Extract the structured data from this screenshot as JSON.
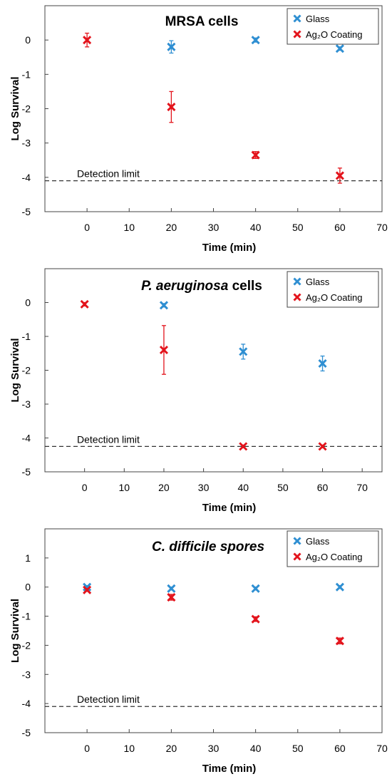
{
  "chart_data": [
    {
      "type": "scatter",
      "title": "MRSA cells",
      "title_italic": false,
      "xlabel": "Time (min)",
      "ylabel": "Log Survival",
      "xlim": [
        -10,
        70
      ],
      "ylim": [
        -5,
        1
      ],
      "xticks": [
        0,
        10,
        20,
        30,
        40,
        50,
        60,
        70
      ],
      "yticks": [
        -5,
        -4,
        -3,
        -2,
        -1,
        0
      ],
      "legend_position": "top-right",
      "detection_limit": {
        "label": "Detection limit",
        "y": -4.1
      },
      "series": [
        {
          "name": "Glass",
          "color": "#2f8fd2",
          "points": [
            {
              "x": 20,
              "y": -0.2,
              "err": 0.18
            },
            {
              "x": 40,
              "y": 0.0,
              "err": 0.06
            },
            {
              "x": 60,
              "y": -0.25,
              "err": 0.05
            }
          ]
        },
        {
          "name": "Ag₂O Coating",
          "color": "#e3141c",
          "points": [
            {
              "x": 0,
              "y": 0.0,
              "err": 0.2
            },
            {
              "x": 20,
              "y": -1.95,
              "err": 0.45
            },
            {
              "x": 40,
              "y": -3.35,
              "err": 0.1
            },
            {
              "x": 60,
              "y": -3.95,
              "err": 0.22
            }
          ]
        }
      ]
    },
    {
      "type": "scatter",
      "title_italic_part": "P. aeruginosa",
      "title_rest": " cells",
      "title_italic": true,
      "xlabel": "Time (min)",
      "ylabel": "Log Survival",
      "xlim": [
        -10,
        75
      ],
      "ylim": [
        -5,
        1
      ],
      "xticks": [
        0,
        10,
        20,
        30,
        40,
        50,
        60,
        70
      ],
      "yticks": [
        -5,
        -4,
        -3,
        -2,
        -1,
        0
      ],
      "legend_position": "top-right",
      "detection_limit": {
        "label": "Detection limit",
        "y": -4.25
      },
      "series": [
        {
          "name": "Glass",
          "color": "#2f8fd2",
          "points": [
            {
              "x": 20,
              "y": -0.08,
              "err": 0.05
            },
            {
              "x": 40,
              "y": -1.45,
              "err": 0.22
            },
            {
              "x": 60,
              "y": -1.8,
              "err": 0.22
            }
          ]
        },
        {
          "name": "Ag₂O Coating",
          "color": "#e3141c",
          "points": [
            {
              "x": 0,
              "y": -0.05,
              "err": 0.05
            },
            {
              "x": 20,
              "y": -1.4,
              "err": 0.72
            },
            {
              "x": 40,
              "y": -4.25,
              "err": 0.04
            },
            {
              "x": 60,
              "y": -4.25,
              "err": 0.04
            }
          ]
        }
      ]
    },
    {
      "type": "scatter",
      "title_italic_part": "C. difficile spores",
      "title_rest": "",
      "title_italic": true,
      "xlabel": "Time (min)",
      "ylabel": "Log Survival",
      "xlim": [
        -10,
        70
      ],
      "ylim": [
        -5,
        2
      ],
      "xticks": [
        0,
        10,
        20,
        30,
        40,
        50,
        60,
        70
      ],
      "yticks": [
        -5,
        -4,
        -3,
        -2,
        -1,
        0,
        1
      ],
      "legend_position": "top-right",
      "detection_limit": {
        "label": "Detection limit",
        "y": -4.1
      },
      "series": [
        {
          "name": "Glass",
          "color": "#2f8fd2",
          "points": [
            {
              "x": 0,
              "y": 0.0,
              "err": 0.05
            },
            {
              "x": 20,
              "y": -0.05,
              "err": 0.05
            },
            {
              "x": 40,
              "y": -0.05,
              "err": 0.05
            },
            {
              "x": 60,
              "y": 0.0,
              "err": 0.05
            }
          ]
        },
        {
          "name": "Ag₂O Coating",
          "color": "#e3141c",
          "points": [
            {
              "x": 0,
              "y": -0.1,
              "err": 0.05
            },
            {
              "x": 20,
              "y": -0.35,
              "err": 0.1
            },
            {
              "x": 40,
              "y": -1.1,
              "err": 0.08
            },
            {
              "x": 60,
              "y": -1.85,
              "err": 0.1
            }
          ]
        }
      ]
    }
  ]
}
